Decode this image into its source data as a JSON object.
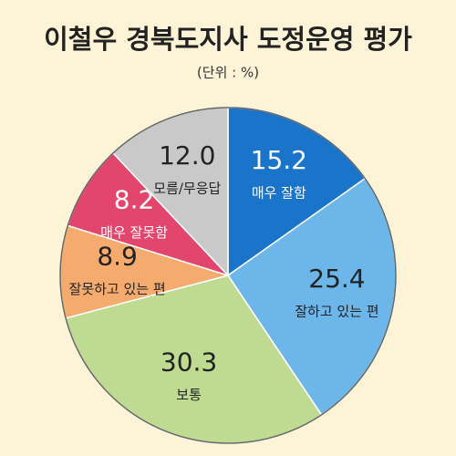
{
  "chart_data": {
    "type": "pie",
    "title": "이철우 경북도지사 도정운영 평가",
    "subtitle": "(단위 : %)",
    "categories": [
      "매우 잘함",
      "잘하고 있는 편",
      "보통",
      "잘못하고 있는 편",
      "매우 잘못함",
      "모름/무응답"
    ],
    "values": [
      15.2,
      25.4,
      30.3,
      8.9,
      8.2,
      12.0
    ],
    "value_labels": [
      "15.2",
      "25.4",
      "30.3",
      "8.9",
      "8.2",
      "12.0"
    ],
    "colors": [
      "#1a74c9",
      "#6db6ea",
      "#bedb91",
      "#f6ab6e",
      "#e2466c",
      "#c9c9c9"
    ]
  }
}
